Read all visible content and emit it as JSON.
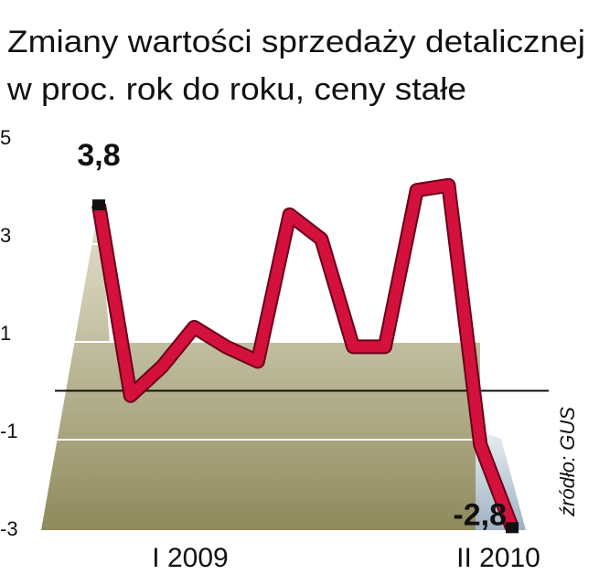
{
  "chart_data": {
    "type": "line",
    "title": "Zmiany wartości sprzedaży detalicznej",
    "subtitle": "w proc. rok do roku, ceny stałe",
    "source": "źródło: GUS",
    "categories": [
      "I 2009",
      null,
      null,
      null,
      null,
      null,
      null,
      null,
      null,
      null,
      null,
      null,
      null,
      "II 2010"
    ],
    "values": [
      3.8,
      -0.1,
      0.5,
      1.3,
      0.9,
      0.6,
      3.6,
      3.1,
      0.9,
      0.9,
      4.1,
      4.2,
      -1.1,
      -2.8
    ],
    "value_labels": [
      "3,8",
      null,
      null,
      null,
      null,
      null,
      null,
      null,
      null,
      null,
      null,
      null,
      null,
      "-2,8"
    ],
    "color": "#d4103c",
    "ylim": [
      -3,
      5
    ],
    "yticks": [
      5,
      3,
      1,
      -1,
      -3
    ]
  }
}
